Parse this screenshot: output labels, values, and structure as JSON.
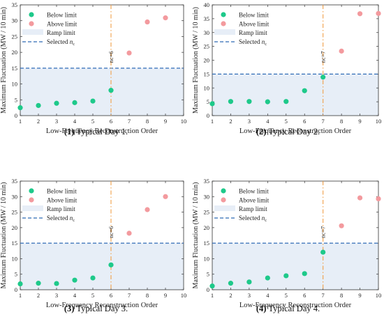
{
  "legend": {
    "below": "Below limit",
    "above": "Above limit",
    "ramp": "Ramp limit",
    "selected_prefix": "Selected ",
    "selected_var": "n",
    "selected_sub": "c"
  },
  "colors": {
    "below": "#1ec98a",
    "above": "#f39a9e",
    "ramp_fill": "#e7eef7",
    "limit_line": "#2e6ab5",
    "selected_line": "#f0a048",
    "selected_text": "#f0a048"
  },
  "chart_data": [
    {
      "type": "scatter",
      "caption_number": "1",
      "caption_text": "Typical Day 1.",
      "xlabel": "Low-Frequency Reconstruction Order",
      "ylabel": "Maximum Fluctuation (MW / 10 min)",
      "xlim": [
        1,
        10
      ],
      "ylim": [
        0,
        35
      ],
      "xticks": [
        1,
        2,
        3,
        4,
        5,
        6,
        7,
        8,
        9,
        10
      ],
      "yticks": [
        0,
        5,
        10,
        15,
        20,
        25,
        30,
        35
      ],
      "ramp_limit": 15,
      "selected_nc": 6,
      "nc_label": "nc=6",
      "below": [
        [
          1,
          2.5
        ],
        [
          2,
          3.2
        ],
        [
          3,
          3.9
        ],
        [
          4,
          4.1
        ],
        [
          5,
          4.6
        ],
        [
          6,
          8.0
        ]
      ],
      "above": [
        [
          7,
          19.8
        ],
        [
          8,
          29.6
        ],
        [
          9,
          30.9
        ]
      ]
    },
    {
      "type": "scatter",
      "caption_number": "2",
      "caption_text": "Typical Day 2.",
      "xlabel": "Low-Frequency Reconstruction Order",
      "ylabel": "Maximum Fluctuation (MW / 10 min)",
      "xlim": [
        1,
        10
      ],
      "ylim": [
        0,
        40
      ],
      "xticks": [
        1,
        2,
        3,
        4,
        5,
        6,
        7,
        8,
        9,
        10
      ],
      "yticks": [
        0,
        5,
        10,
        15,
        20,
        25,
        30,
        35,
        40
      ],
      "ramp_limit": 15,
      "selected_nc": 7,
      "nc_label": "nc=7",
      "below": [
        [
          1,
          4.3
        ],
        [
          2,
          5.1
        ],
        [
          3,
          5.1
        ],
        [
          4,
          5.0
        ],
        [
          5,
          5.1
        ],
        [
          6,
          9.0
        ],
        [
          7,
          13.9
        ]
      ],
      "above": [
        [
          8,
          23.3
        ],
        [
          9,
          36.8
        ],
        [
          10,
          36.9
        ]
      ]
    },
    {
      "type": "scatter",
      "caption_number": "3",
      "caption_text": "Typical Day 3.",
      "xlabel": "Low-Frequency Reconstruction Order",
      "ylabel": "Maximum Fluctuation (MW / 10 min)",
      "xlim": [
        1,
        10
      ],
      "ylim": [
        0,
        35
      ],
      "xticks": [
        1,
        2,
        3,
        4,
        5,
        6,
        7,
        8,
        9,
        10
      ],
      "yticks": [
        0,
        5,
        10,
        15,
        20,
        25,
        30,
        35
      ],
      "ramp_limit": 15,
      "selected_nc": 6,
      "nc_label": "nc=6",
      "below": [
        [
          1,
          1.9
        ],
        [
          2,
          2.1
        ],
        [
          3,
          2.0
        ],
        [
          4,
          3.1
        ],
        [
          5,
          3.8
        ],
        [
          6,
          8.0
        ]
      ],
      "above": [
        [
          7,
          18.2
        ],
        [
          8,
          25.8
        ],
        [
          9,
          30.0
        ]
      ]
    },
    {
      "type": "scatter",
      "caption_number": "4",
      "caption_text": "Typical Day 4.",
      "xlabel": "Low-Frequency Reconstruction Order",
      "ylabel": "Maximum Fluctuation (MW / 10 min)",
      "xlim": [
        1,
        10
      ],
      "ylim": [
        0,
        35
      ],
      "xticks": [
        1,
        2,
        3,
        4,
        5,
        6,
        7,
        8,
        9,
        10
      ],
      "yticks": [
        0,
        5,
        10,
        15,
        20,
        25,
        30,
        35
      ],
      "ramp_limit": 15,
      "selected_nc": 7,
      "nc_label": "nc=7",
      "below": [
        [
          1,
          1.2
        ],
        [
          2,
          2.1
        ],
        [
          3,
          2.5
        ],
        [
          4,
          3.8
        ],
        [
          5,
          4.5
        ],
        [
          6,
          5.2
        ],
        [
          7,
          12.1
        ]
      ],
      "above": [
        [
          8,
          20.6
        ],
        [
          9,
          29.6
        ],
        [
          10,
          29.3
        ]
      ]
    }
  ]
}
